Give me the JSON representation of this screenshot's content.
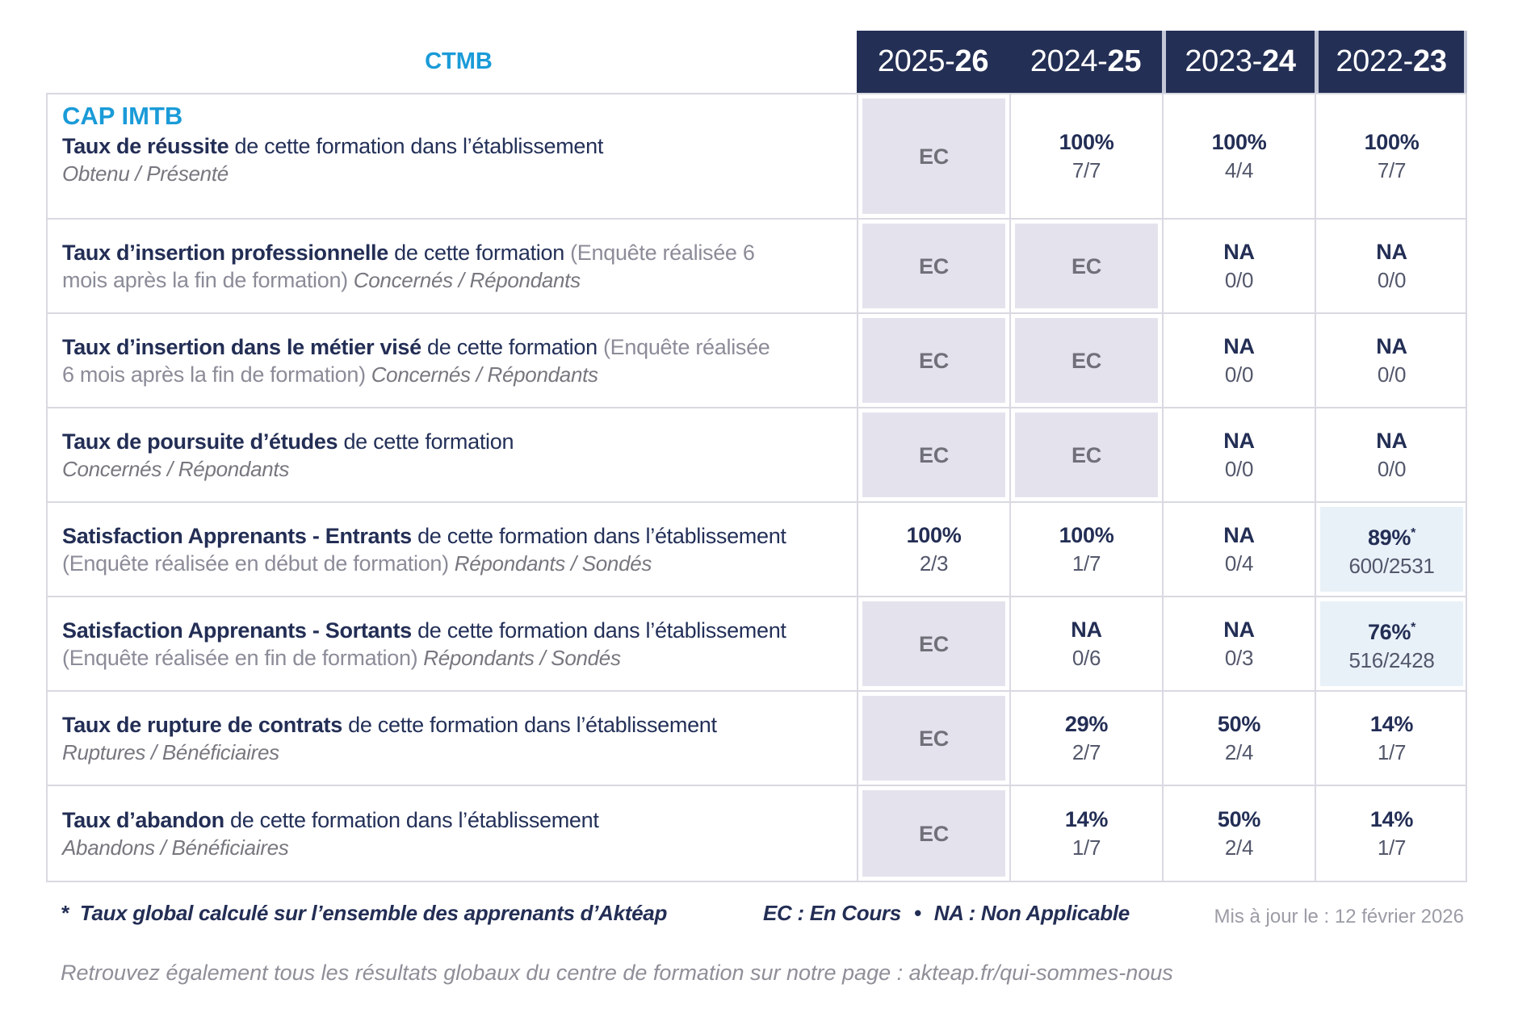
{
  "page": {
    "org": "CTMB",
    "footnote_star": "*",
    "footnote_text": "Taux global calculé sur l’ensemble des apprenants d’Aktéap",
    "legend_ec": "EC : En Cours",
    "legend_bullet": "•",
    "legend_na": "NA : Non Applicable",
    "updated": "Mis à jour le : 12 février 2026",
    "bottom_text": "Retrouvez également tous les résultats globaux du centre de formation sur notre page : akteap.fr/qui-sommes-nous"
  },
  "colors": {
    "navy": "#232e55",
    "bright_blue": "#1a9bd8",
    "grey_cell_bg": "#e4e3ed",
    "blue_cell_bg": "#e9f1f8",
    "border": "#d9d9e2"
  },
  "columns": [
    {
      "prefix": "2025-",
      "bold": "26"
    },
    {
      "prefix": "2024-",
      "bold": "25"
    },
    {
      "prefix": "2023-",
      "bold": "24"
    },
    {
      "prefix": "2022-",
      "bold": "23"
    }
  ],
  "rows": [
    {
      "program": "CAP IMTB",
      "bold": "Taux de réussite",
      "rest": " de cette formation dans l’établissement",
      "paren": "",
      "sub": "Obtenu / Présenté",
      "cells": [
        {
          "value": "EC",
          "fraction": "",
          "star": ""
        },
        {
          "value": "100%",
          "fraction": "7/7",
          "star": ""
        },
        {
          "value": "100%",
          "fraction": "4/4",
          "star": ""
        },
        {
          "value": "100%",
          "fraction": "7/7",
          "star": ""
        }
      ]
    },
    {
      "bold": "Taux d’insertion professionnelle",
      "rest": " de cette formation",
      "paren": " (Enquête réalisée 6 mois après la fin de formation)",
      "sub": " Concernés / Répondants",
      "cells": [
        {
          "value": "EC",
          "fraction": "",
          "star": ""
        },
        {
          "value": "EC",
          "fraction": "",
          "star": ""
        },
        {
          "value": "NA",
          "fraction": "0/0",
          "star": ""
        },
        {
          "value": "NA",
          "fraction": "0/0",
          "star": ""
        }
      ]
    },
    {
      "bold": "Taux d’insertion dans le métier visé",
      "rest": " de cette formation",
      "paren": " (Enquête réalisée 6 mois après la fin de formation)",
      "sub": " Concernés / Répondants",
      "cells": [
        {
          "value": "EC",
          "fraction": "",
          "star": ""
        },
        {
          "value": "EC",
          "fraction": "",
          "star": ""
        },
        {
          "value": "NA",
          "fraction": "0/0",
          "star": ""
        },
        {
          "value": "NA",
          "fraction": "0/0",
          "star": ""
        }
      ]
    },
    {
      "bold": "Taux de poursuite d’études",
      "rest": " de cette formation",
      "paren": "",
      "sub": "Concernés / Répondants",
      "cells": [
        {
          "value": "EC",
          "fraction": "",
          "star": ""
        },
        {
          "value": "EC",
          "fraction": "",
          "star": ""
        },
        {
          "value": "NA",
          "fraction": "0/0",
          "star": ""
        },
        {
          "value": "NA",
          "fraction": "0/0",
          "star": ""
        }
      ]
    },
    {
      "bold": "Satisfaction Apprenants - Entrants",
      "rest": " de cette formation dans l’établissement",
      "paren": " (Enquête réalisée en début de formation)",
      "sub": " Répondants / Sondés",
      "cells": [
        {
          "value": "100%",
          "fraction": "2/3",
          "star": ""
        },
        {
          "value": "100%",
          "fraction": "1/7",
          "star": ""
        },
        {
          "value": "NA",
          "fraction": "0/4",
          "star": ""
        },
        {
          "value": "89%",
          "fraction": "600/2531",
          "star": "*"
        }
      ]
    },
    {
      "bold": "Satisfaction Apprenants - Sortants",
      "rest": " de cette formation dans l’établissement",
      "paren": " (Enquête réalisée en fin de formation)",
      "sub": " Répondants / Sondés",
      "cells": [
        {
          "value": "EC",
          "fraction": "",
          "star": ""
        },
        {
          "value": "NA",
          "fraction": "0/6",
          "star": ""
        },
        {
          "value": "NA",
          "fraction": "0/3",
          "star": ""
        },
        {
          "value": "76%",
          "fraction": "516/2428",
          "star": "*"
        }
      ]
    },
    {
      "bold": "Taux de rupture de contrats",
      "rest": " de cette formation dans l’établissement",
      "paren": "",
      "sub": "Ruptures / Bénéficiaires",
      "cells": [
        {
          "value": "EC",
          "fraction": "",
          "star": ""
        },
        {
          "value": "29%",
          "fraction": "2/7",
          "star": ""
        },
        {
          "value": "50%",
          "fraction": "2/4",
          "star": ""
        },
        {
          "value": "14%",
          "fraction": "1/7",
          "star": ""
        }
      ]
    },
    {
      "bold": "Taux d’abandon",
      "rest": " de cette formation dans l’établissement",
      "paren": "",
      "sub": "Abandons / Bénéficiaires",
      "cells": [
        {
          "value": "EC",
          "fraction": "",
          "star": ""
        },
        {
          "value": "14%",
          "fraction": "1/7",
          "star": ""
        },
        {
          "value": "50%",
          "fraction": "2/4",
          "star": ""
        },
        {
          "value": "14%",
          "fraction": "1/7",
          "star": ""
        }
      ]
    }
  ]
}
